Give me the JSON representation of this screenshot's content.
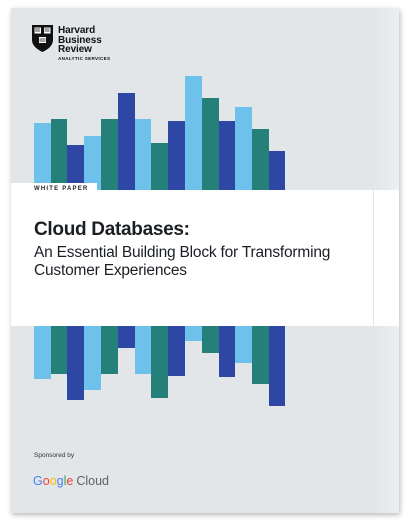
{
  "publisher": {
    "line1": "Harvard",
    "line2": "Business",
    "line3": "Review",
    "division": "ANALYTIC SERVICES"
  },
  "document": {
    "type_label": "WHITE PAPER",
    "title": "Cloud Databases:",
    "subtitle": "An Essential Building Block for Transforming Customer Experiences"
  },
  "sponsor": {
    "label": "Sponsored by",
    "brand_word": "Google",
    "brand_product": "Cloud"
  },
  "colors": {
    "light_blue": "#6ec1ea",
    "teal": "#25807a",
    "navy": "#2e46a4",
    "cover_gray": "#e2e6e8",
    "google_blue": "#4285f4",
    "google_red": "#ea4335",
    "google_yellow": "#fbbc05",
    "google_green": "#34a853"
  }
}
